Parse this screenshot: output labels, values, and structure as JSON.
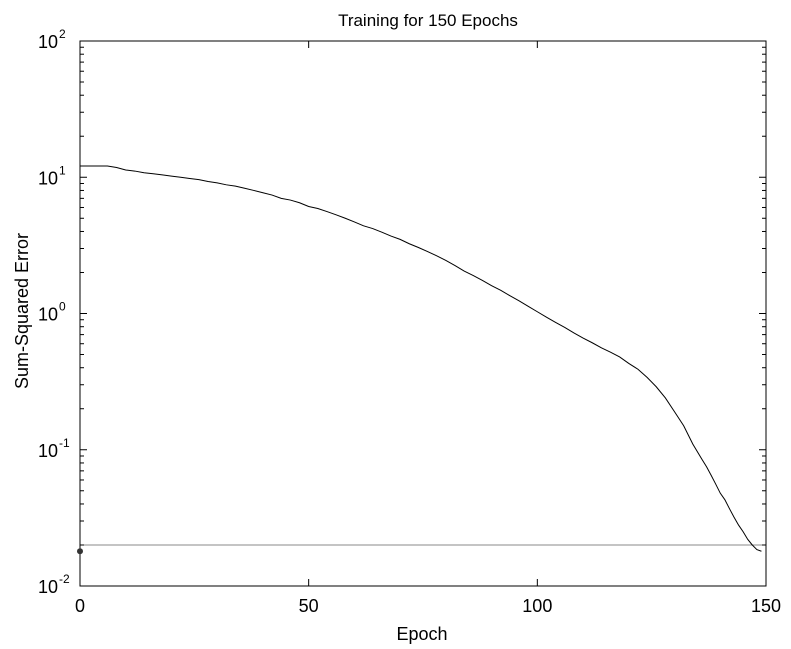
{
  "chart_data": {
    "type": "line",
    "title": "Training for 150 Epochs",
    "xlabel": "Epoch",
    "ylabel": "Sum-Squared Error",
    "xlim": [
      0,
      150
    ],
    "ylim": [
      0.01,
      100
    ],
    "yscale": "log",
    "grid": false,
    "x_ticks": [
      {
        "value": 0,
        "label": "0"
      },
      {
        "value": 50,
        "label": "50"
      },
      {
        "value": 100,
        "label": "100"
      },
      {
        "value": 150,
        "label": "150"
      }
    ],
    "y_ticks": [
      {
        "value": 0.01,
        "base": "10",
        "exp": "-2"
      },
      {
        "value": 0.1,
        "base": "10",
        "exp": "-1"
      },
      {
        "value": 1,
        "base": "10",
        "exp": "0"
      },
      {
        "value": 10,
        "base": "10",
        "exp": "1"
      },
      {
        "value": 100,
        "base": "10",
        "exp": "2"
      }
    ],
    "series": [
      {
        "color": "#000000",
        "x": [
          0,
          2,
          4,
          6,
          8,
          10,
          12,
          14,
          16,
          18,
          20,
          22,
          24,
          26,
          28,
          30,
          32,
          34,
          36,
          38,
          40,
          42,
          44,
          46,
          48,
          50,
          52,
          54,
          56,
          58,
          60,
          62,
          64,
          66,
          68,
          70,
          72,
          74,
          76,
          78,
          80,
          82,
          84,
          86,
          88,
          90,
          92,
          94,
          96,
          98,
          100,
          102,
          104,
          106,
          108,
          110,
          112,
          114,
          116,
          118,
          120,
          122,
          124,
          126,
          128,
          130,
          132,
          134,
          136,
          137,
          138,
          139,
          140,
          141,
          142,
          143,
          144,
          145,
          146,
          147,
          148,
          149
        ],
        "y": [
          12.1,
          12.1,
          12.1,
          12.1,
          11.8,
          11.3,
          11.1,
          10.8,
          10.6,
          10.4,
          10.2,
          10.0,
          9.8,
          9.6,
          9.3,
          9.1,
          8.8,
          8.6,
          8.3,
          8.0,
          7.7,
          7.4,
          7.0,
          6.8,
          6.5,
          6.1,
          5.9,
          5.6,
          5.3,
          5.0,
          4.7,
          4.4,
          4.2,
          3.95,
          3.7,
          3.5,
          3.25,
          3.05,
          2.85,
          2.65,
          2.45,
          2.25,
          2.05,
          1.9,
          1.75,
          1.6,
          1.48,
          1.35,
          1.24,
          1.13,
          1.03,
          0.94,
          0.86,
          0.79,
          0.72,
          0.66,
          0.61,
          0.56,
          0.52,
          0.48,
          0.43,
          0.39,
          0.34,
          0.29,
          0.24,
          0.19,
          0.15,
          0.11,
          0.085,
          0.075,
          0.065,
          0.056,
          0.048,
          0.043,
          0.037,
          0.032,
          0.028,
          0.025,
          0.022,
          0.02,
          0.0185,
          0.018
        ]
      }
    ],
    "goal_line": {
      "value": 0.02,
      "color": "#888888"
    },
    "goal_marker": {
      "x": 0,
      "y": 0.018
    }
  }
}
